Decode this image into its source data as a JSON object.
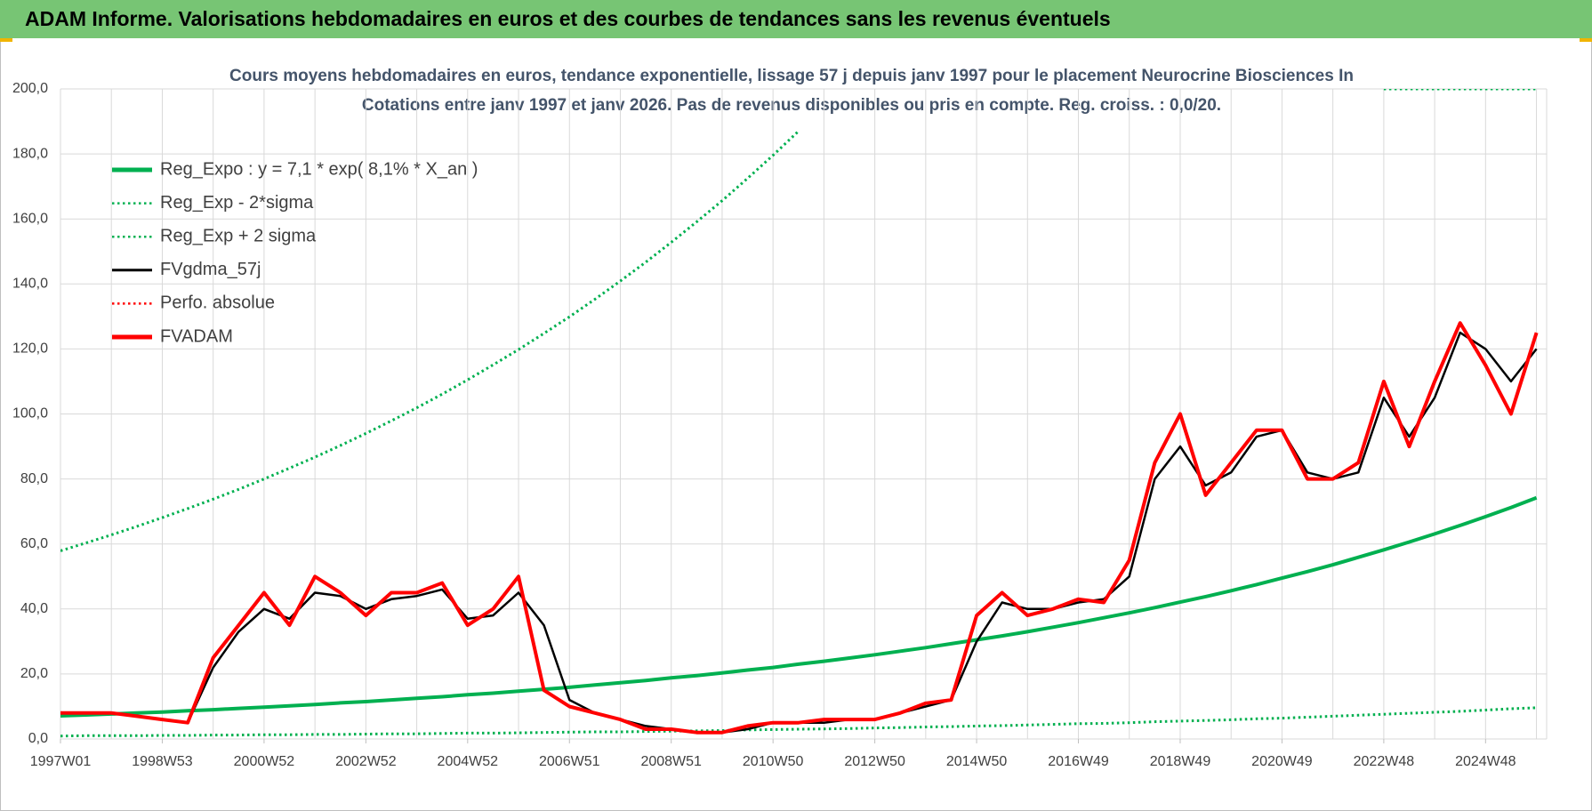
{
  "header": {
    "title": "ADAM Informe. Valorisations hebdomadaires en euros et des courbes de tendances sans les revenus éventuels"
  },
  "chart_data": {
    "type": "line",
    "title": "Cours moyens hebdomadaires en euros, tendance exponentielle, lissage 57 j depuis janv 1997 pour le placement Neurocrine Biosciences In",
    "subtitle": "Cotations entre janv 1997 et janv 2026. Pas de revenus disponibles ou pris en compte. Reg. croiss. : 0,0/20.",
    "categories": [
      "1997W01",
      null,
      null,
      null,
      "1998W53",
      null,
      null,
      null,
      "2000W52",
      null,
      null,
      null,
      "2002W52",
      null,
      null,
      null,
      "2004W52",
      null,
      null,
      null,
      "2006W51",
      null,
      null,
      null,
      "2008W51",
      null,
      null,
      null,
      "2010W50",
      null,
      null,
      null,
      "2012W50",
      null,
      null,
      null,
      "2014W50",
      null,
      null,
      null,
      "2016W49",
      null,
      null,
      null,
      "2018W49",
      null,
      null,
      null,
      "2020W49",
      null,
      null,
      null,
      "2022W48",
      null,
      null,
      null,
      "2024W48",
      null,
      null
    ],
    "ylim": [
      0,
      200
    ],
    "yticks": [
      {
        "value": 0,
        "label": "0,0"
      },
      {
        "value": 20,
        "label": "20,0"
      },
      {
        "value": 40,
        "label": "40,0"
      },
      {
        "value": 60,
        "label": "60,0"
      },
      {
        "value": 80,
        "label": "80,0"
      },
      {
        "value": 100,
        "label": "100,0"
      },
      {
        "value": 120,
        "label": "120,0"
      },
      {
        "value": 140,
        "label": "140,0"
      },
      {
        "value": 160,
        "label": "160,0"
      },
      {
        "value": 180,
        "label": "180,0"
      },
      {
        "value": 200,
        "label": "200,0"
      }
    ],
    "grid": true,
    "legend": "upper-left",
    "series": [
      {
        "name": "Reg_Expo : y = 7,1 * exp( 8,1% *  X_an )",
        "color": "#00b050",
        "style": "thick",
        "values": [
          7.1,
          7.4,
          7.7,
          8.0,
          8.3,
          8.7,
          9.0,
          9.4,
          9.8,
          10.2,
          10.6,
          11.1,
          11.5,
          12.0,
          12.5,
          13.0,
          13.6,
          14.1,
          14.7,
          15.3,
          15.9,
          16.6,
          17.3,
          18.0,
          18.8,
          19.5,
          20.3,
          21.2,
          22.0,
          23.0,
          23.9,
          24.9,
          25.9,
          27.0,
          28.1,
          29.3,
          30.5,
          31.7,
          33.0,
          34.4,
          35.8,
          37.3,
          38.8,
          40.4,
          42.1,
          43.8,
          45.6,
          47.5,
          49.5,
          51.5,
          53.6,
          55.9,
          58.2,
          60.6,
          63.1,
          65.7,
          68.4,
          71.2,
          74.2
        ]
      },
      {
        "name": "Reg_Exp - 2*sigma",
        "color": "#00b050",
        "style": "dotted",
        "values": [
          0.9,
          1.0,
          1.0,
          1.0,
          1.1,
          1.1,
          1.2,
          1.2,
          1.3,
          1.3,
          1.4,
          1.4,
          1.5,
          1.6,
          1.6,
          1.7,
          1.8,
          1.8,
          1.9,
          2.0,
          2.1,
          2.2,
          2.2,
          2.3,
          2.4,
          2.5,
          2.6,
          2.8,
          2.9,
          3.0,
          3.1,
          3.2,
          3.4,
          3.5,
          3.7,
          3.8,
          4.0,
          4.1,
          4.3,
          4.5,
          4.7,
          4.8,
          5.0,
          5.3,
          5.5,
          5.7,
          5.9,
          6.2,
          6.4,
          6.7,
          7.0,
          7.3,
          7.6,
          7.9,
          8.2,
          8.5,
          8.9,
          9.3,
          9.6
        ]
      },
      {
        "name": "Reg_Exp + 2 sigma",
        "color": "#00b050",
        "style": "dotted",
        "values": [
          57.9,
          60.3,
          62.8,
          65.4,
          68.1,
          70.9,
          73.8,
          76.8,
          80.0,
          83.3,
          86.7,
          90.3,
          94.0,
          97.9,
          101.9,
          106.1,
          110.5,
          115.1,
          119.8,
          124.8,
          129.9,
          135.3,
          140.9,
          146.7,
          152.8,
          159.1,
          165.6,
          172.5,
          179.6,
          187.0,
          null,
          null,
          null,
          null,
          null,
          null,
          null,
          null,
          null,
          null,
          null,
          null,
          null,
          null,
          null,
          null,
          null,
          null,
          null,
          null,
          null,
          null,
          200,
          200,
          200,
          200,
          200,
          200,
          200
        ]
      },
      {
        "name": "FVgdma_57j",
        "color": "#000000",
        "style": "solid",
        "values": [
          8,
          8,
          8,
          7,
          6,
          5,
          22,
          33,
          40,
          37,
          45,
          44,
          40,
          43,
          44,
          46,
          37,
          38,
          45,
          35,
          12,
          8,
          6,
          4,
          3,
          2,
          2,
          3,
          5,
          5,
          5,
          6,
          6,
          8,
          10,
          12,
          30,
          42,
          40,
          40,
          42,
          43,
          50,
          80,
          90,
          78,
          82,
          93,
          95,
          82,
          80,
          82,
          105,
          93,
          105,
          125,
          120,
          110,
          120
        ]
      },
      {
        "name": "Perfo. absolue",
        "color": "#ff0000",
        "style": "dotted",
        "values": [
          null,
          null,
          null,
          null,
          null,
          null,
          null,
          null,
          null,
          null,
          null,
          null,
          null,
          null,
          null,
          null,
          null,
          null,
          null,
          null,
          null,
          null,
          null,
          null,
          null,
          null,
          null,
          null,
          null,
          null,
          null,
          null,
          null,
          null,
          null,
          null,
          null,
          null,
          null,
          null,
          null,
          null,
          null,
          null,
          null,
          null,
          null,
          null,
          null,
          null,
          null,
          null,
          null,
          null,
          null,
          null,
          null,
          null,
          null
        ]
      },
      {
        "name": "FVADAM",
        "color": "#ff0000",
        "style": "thick",
        "values": [
          8,
          8,
          8,
          7,
          6,
          5,
          25,
          35,
          45,
          35,
          50,
          45,
          38,
          45,
          45,
          48,
          35,
          40,
          50,
          15,
          10,
          8,
          6,
          3,
          3,
          2,
          2,
          4,
          5,
          5,
          6,
          6,
          6,
          8,
          11,
          12,
          38,
          45,
          38,
          40,
          43,
          42,
          55,
          85,
          100,
          75,
          85,
          95,
          95,
          80,
          80,
          85,
          110,
          90,
          110,
          128,
          115,
          100,
          125
        ]
      }
    ]
  }
}
